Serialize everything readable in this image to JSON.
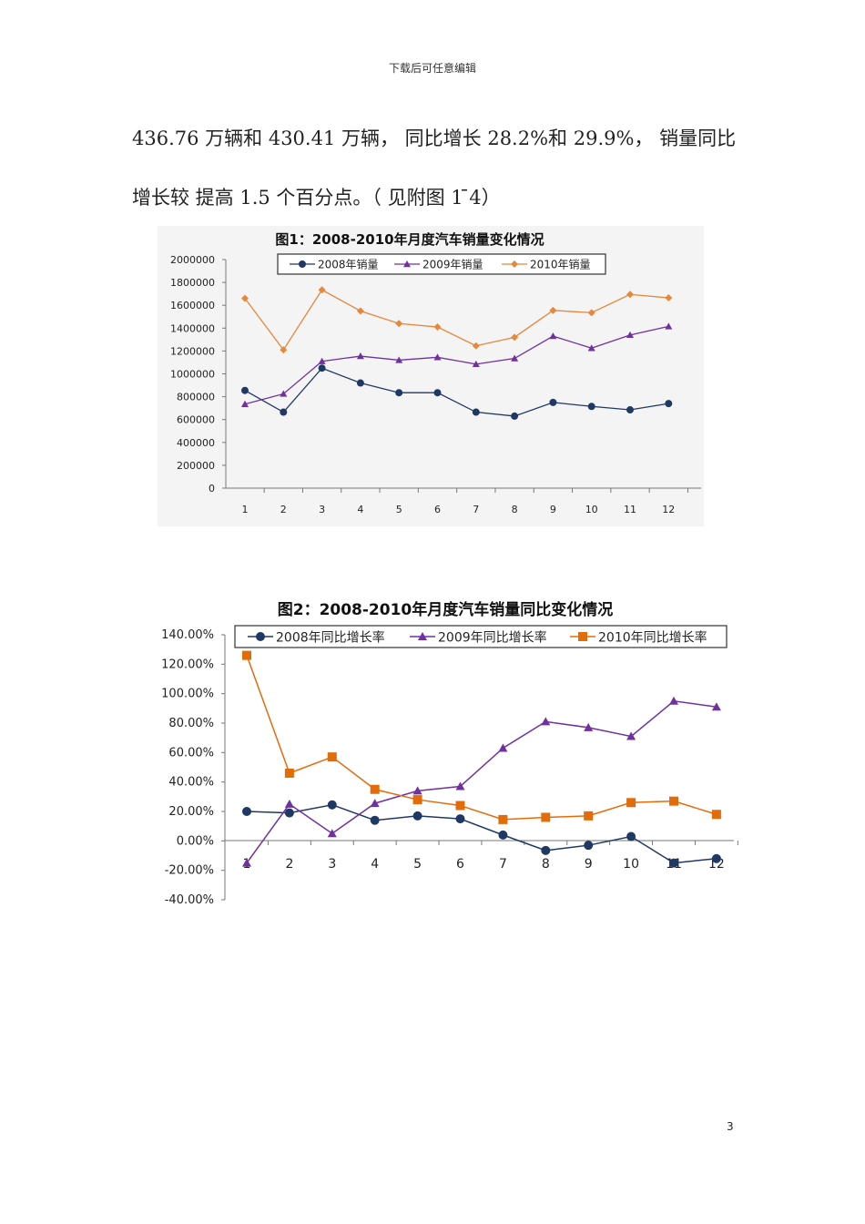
{
  "header": {
    "text": "下载后可任意编辑"
  },
  "body": {
    "line1": "436.76 万辆和 430.41 万辆， 同比增长 28.2%和 29.9%， 销量同比",
    "line2": "增长较  提高 1.5 个百分点。（ 见附图 1 ̄4）"
  },
  "page_number": "3",
  "chart_data": [
    {
      "type": "line",
      "title": "图1：2008-2010年月度汽车销量变化情况",
      "categories": [
        "1",
        "2",
        "3",
        "4",
        "5",
        "6",
        "7",
        "8",
        "9",
        "10",
        "11",
        "12"
      ],
      "ylim": [
        0,
        2000000
      ],
      "yticks": [
        "0",
        "200000",
        "400000",
        "600000",
        "800000",
        "1000000",
        "1200000",
        "1400000",
        "1600000",
        "1800000",
        "2000000"
      ],
      "legend": "top",
      "grid": false,
      "series": [
        {
          "name": "2008年销量",
          "color": "#1f3864",
          "marker": "circle",
          "values": [
            855000,
            665000,
            1050000,
            920000,
            835000,
            835000,
            665000,
            630000,
            750000,
            715000,
            685000,
            740000
          ]
        },
        {
          "name": "2009年销量",
          "color": "#7030a0",
          "marker": "triangle",
          "values": [
            735000,
            825000,
            1110000,
            1155000,
            1120000,
            1145000,
            1085000,
            1135000,
            1330000,
            1225000,
            1340000,
            1415000
          ]
        },
        {
          "name": "2010年销量",
          "color": "#e6873a",
          "marker": "diamond",
          "values": [
            1660000,
            1210000,
            1735000,
            1550000,
            1440000,
            1410000,
            1245000,
            1320000,
            1555000,
            1535000,
            1695000,
            1665000
          ]
        }
      ]
    },
    {
      "type": "line",
      "title": "图2：2008-2010年月度汽车销量同比变化情况",
      "categories": [
        "1",
        "2",
        "3",
        "4",
        "5",
        "6",
        "7",
        "8",
        "9",
        "10",
        "11",
        "12"
      ],
      "ylim": [
        -40,
        140
      ],
      "yticks": [
        "-40.00%",
        "-20.00%",
        "0.00%",
        "20.00%",
        "40.00%",
        "60.00%",
        "80.00%",
        "100.00%",
        "120.00%",
        "140.00%"
      ],
      "legend": "top",
      "grid": false,
      "series": [
        {
          "name": "2008年同比增长率",
          "color": "#1f3864",
          "marker": "circle",
          "values": [
            20,
            19,
            24.5,
            14,
            17,
            15,
            4,
            -6.5,
            -3,
            3,
            -15,
            -12
          ]
        },
        {
          "name": "2009年同比增长率",
          "color": "#7030a0",
          "marker": "triangle",
          "values": [
            -15,
            25,
            5,
            25.5,
            34,
            37,
            63,
            81,
            77,
            71,
            95,
            91
          ]
        },
        {
          "name": "2010年同比增长率",
          "color": "#e36c0a",
          "marker": "square",
          "values": [
            126,
            46,
            57,
            35,
            28,
            24,
            14.5,
            16,
            17,
            26,
            27,
            18
          ]
        }
      ]
    }
  ]
}
